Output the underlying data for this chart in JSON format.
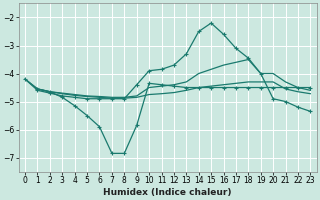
{
  "xlabel": "Humidex (Indice chaleur)",
  "bg_color": "#cce8e0",
  "grid_color": "#ffffff",
  "line_color": "#1a7a6e",
  "xlim": [
    -0.5,
    23.5
  ],
  "ylim": [
    -7.5,
    -1.5
  ],
  "yticks": [
    -7,
    -6,
    -5,
    -4,
    -3,
    -2
  ],
  "xticks": [
    0,
    1,
    2,
    3,
    4,
    5,
    6,
    7,
    8,
    9,
    10,
    11,
    12,
    13,
    14,
    15,
    16,
    17,
    18,
    19,
    20,
    21,
    22,
    23
  ],
  "line1_x": [
    0,
    1,
    2,
    3,
    4,
    5,
    6,
    7,
    8,
    9,
    10,
    11,
    12,
    13,
    14,
    15,
    16,
    17,
    18,
    19,
    20,
    21,
    22,
    23
  ],
  "line1_y": [
    -4.2,
    -4.6,
    -4.7,
    -4.8,
    -4.85,
    -4.9,
    -4.9,
    -4.9,
    -4.9,
    -4.4,
    -3.9,
    -3.85,
    -3.7,
    -3.3,
    -2.5,
    -2.2,
    -2.6,
    -3.1,
    -3.45,
    -4.0,
    -4.9,
    -5.0,
    -5.2,
    -5.35
  ],
  "line2_x": [
    0,
    1,
    2,
    3,
    4,
    5,
    6,
    7,
    8,
    9,
    10,
    11,
    12,
    13,
    14,
    15,
    16,
    17,
    18,
    19,
    20,
    21,
    22,
    23
  ],
  "line2_y": [
    -4.2,
    -4.55,
    -4.65,
    -4.7,
    -4.75,
    -4.8,
    -4.82,
    -4.85,
    -4.85,
    -4.8,
    -4.5,
    -4.45,
    -4.4,
    -4.3,
    -4.0,
    -3.85,
    -3.7,
    -3.6,
    -3.5,
    -4.0,
    -4.0,
    -4.3,
    -4.5,
    -4.6
  ],
  "line3_x": [
    0,
    1,
    2,
    3,
    4,
    5,
    6,
    7,
    8,
    9,
    10,
    11,
    12,
    13,
    14,
    15,
    16,
    17,
    18,
    19,
    20,
    21,
    22,
    23
  ],
  "line3_y": [
    -4.2,
    -4.55,
    -4.65,
    -4.72,
    -4.78,
    -4.82,
    -4.85,
    -4.88,
    -4.88,
    -4.85,
    -4.75,
    -4.72,
    -4.68,
    -4.6,
    -4.5,
    -4.45,
    -4.4,
    -4.35,
    -4.3,
    -4.3,
    -4.3,
    -4.55,
    -4.65,
    -4.72
  ],
  "line4_x": [
    1,
    2,
    3,
    4,
    5,
    6,
    7,
    8,
    9,
    10,
    11,
    12,
    13,
    14,
    15,
    16,
    17,
    18,
    19,
    20,
    21,
    22,
    23
  ],
  "line4_y": [
    -4.55,
    -4.65,
    -4.85,
    -5.15,
    -5.5,
    -5.9,
    -6.85,
    -6.85,
    -5.85,
    -4.35,
    -4.4,
    -4.45,
    -4.5,
    -4.5,
    -4.5,
    -4.5,
    -4.5,
    -4.5,
    -4.5,
    -4.5,
    -4.5,
    -4.5,
    -4.5
  ]
}
